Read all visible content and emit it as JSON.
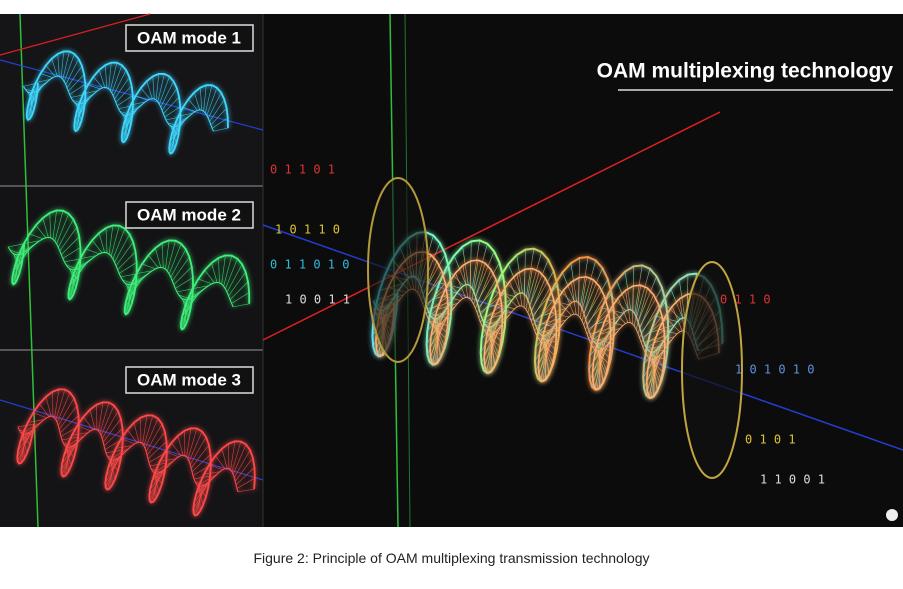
{
  "figure": {
    "panels": [
      {
        "label": "OAM mode 1"
      },
      {
        "label": "OAM mode 2"
      },
      {
        "label": "OAM mode 3"
      }
    ],
    "main_title": "OAM multiplexing technology",
    "binary_text": [
      "0 1 1 0 1",
      "1 0 1 1 0",
      "0 1 1 0 1 0",
      "1 0 0 1 1",
      "0 1 1 0",
      "1 0 1 0 1 0",
      "0 1 0 1",
      "1 1 0 0 1"
    ],
    "caption": "Figure 2: Principle of OAM multiplexing transmission technology"
  }
}
